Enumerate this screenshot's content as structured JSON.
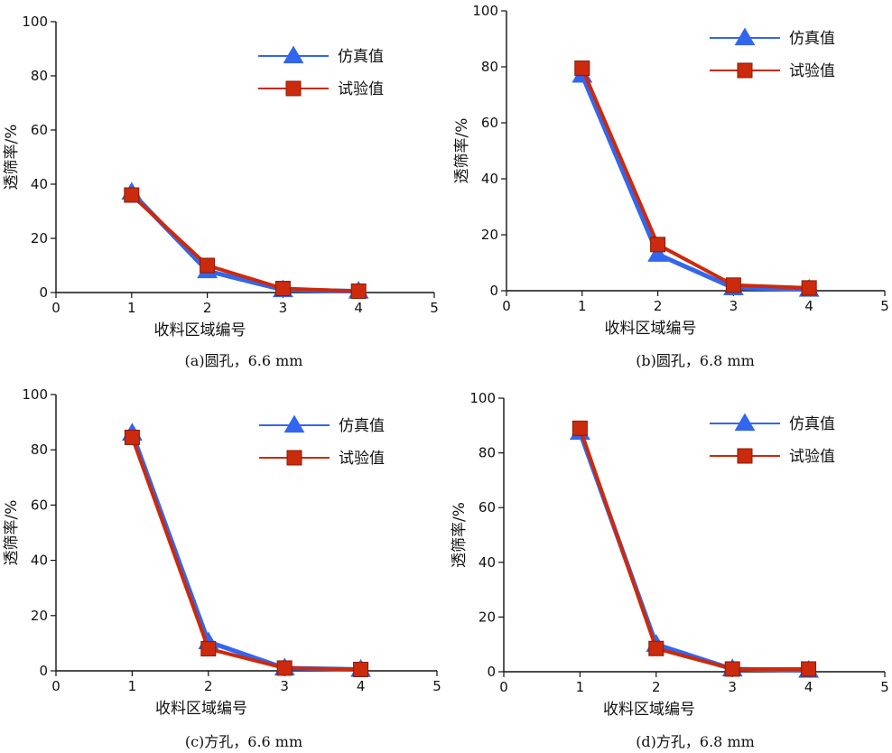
{
  "colors": {
    "sim": "#3366ee",
    "exp": "#cc2a0c",
    "axis": "#111111"
  },
  "chart_data": [
    {
      "type": "line",
      "caption": "(a)圆孔，6.6 mm",
      "xlabel": "收料区域编号",
      "ylabel": "透筛率/%",
      "xlim": [
        0,
        5
      ],
      "ylim": [
        0,
        100
      ],
      "xticks": [
        "0",
        "1",
        "2",
        "3",
        "4",
        "5"
      ],
      "yticks": [
        "0",
        "20",
        "40",
        "60",
        "80",
        "100"
      ],
      "legend_position": "top-right",
      "categories": [
        1,
        2,
        3,
        4
      ],
      "series": [
        {
          "name": "仿真值",
          "marker": "triangle",
          "values": [
            37,
            8,
            1,
            0.5
          ]
        },
        {
          "name": "试验值",
          "marker": "square",
          "values": [
            36,
            10,
            1.5,
            0.5
          ]
        }
      ]
    },
    {
      "type": "line",
      "caption": "(b)圆孔，6.8 mm",
      "xlabel": "收料区域编号",
      "ylabel": "透筛率/%",
      "xlim": [
        0,
        5
      ],
      "ylim": [
        0,
        100
      ],
      "xticks": [
        "0",
        "1",
        "2",
        "3",
        "4",
        "5"
      ],
      "yticks": [
        "0",
        "20",
        "40",
        "60",
        "80",
        "100"
      ],
      "legend_position": "top-right",
      "categories": [
        1,
        2,
        3,
        4
      ],
      "series": [
        {
          "name": "仿真值",
          "marker": "triangle",
          "values": [
            77,
            13,
            1,
            0.5
          ]
        },
        {
          "name": "试验值",
          "marker": "square",
          "values": [
            79.5,
            16.5,
            2,
            1
          ]
        }
      ]
    },
    {
      "type": "line",
      "caption": "(c)方孔，6.6 mm",
      "xlabel": "收料区域编号",
      "ylabel": "透筛率/%",
      "xlim": [
        0,
        5
      ],
      "ylim": [
        0,
        100
      ],
      "xticks": [
        "0",
        "1",
        "2",
        "3",
        "4",
        "5"
      ],
      "yticks": [
        "0",
        "20",
        "40",
        "60",
        "80",
        "100"
      ],
      "legend_position": "top-right",
      "categories": [
        1,
        2,
        3,
        4
      ],
      "series": [
        {
          "name": "仿真值",
          "marker": "triangle",
          "values": [
            86,
            10.5,
            1,
            0.5
          ]
        },
        {
          "name": "试验值",
          "marker": "square",
          "values": [
            84.5,
            8,
            1,
            0.5
          ]
        }
      ]
    },
    {
      "type": "line",
      "caption": "(d)方孔，6.8 mm",
      "xlabel": "收料区域编号",
      "ylabel": "透筛率/%",
      "xlim": [
        0,
        5
      ],
      "ylim": [
        0,
        100
      ],
      "xticks": [
        "0",
        "1",
        "2",
        "3",
        "4",
        "5"
      ],
      "yticks": [
        "0",
        "20",
        "40",
        "60",
        "80",
        "100"
      ],
      "legend_position": "top-right",
      "categories": [
        1,
        2,
        3,
        4
      ],
      "series": [
        {
          "name": "仿真值",
          "marker": "triangle",
          "values": [
            87.5,
            10,
            1,
            0.5
          ]
        },
        {
          "name": "试验值",
          "marker": "square",
          "values": [
            89,
            8.5,
            1,
            1
          ]
        }
      ]
    }
  ]
}
